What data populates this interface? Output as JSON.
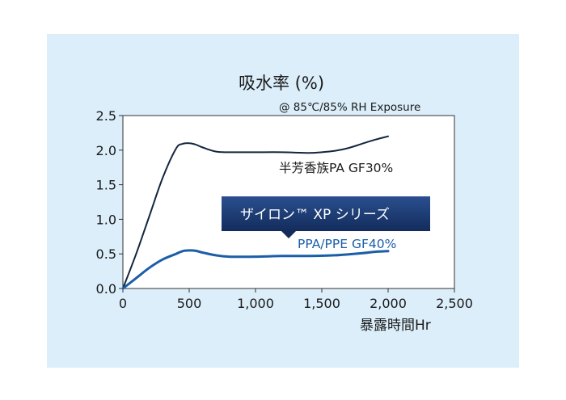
{
  "chart_data": {
    "type": "line",
    "title": "吸水率 (%)",
    "subtitle": "@ 85℃/85% RH Exposure",
    "xlabel": "暴露時間Hr",
    "ylabel": "",
    "xlim": [
      0,
      2500
    ],
    "ylim": [
      0,
      2.5
    ],
    "x_ticks": [
      0,
      500,
      1000,
      1500,
      2000,
      2500
    ],
    "x_tick_labels": [
      "0",
      "500",
      "1,000",
      "1,500",
      "2,000",
      "2,500"
    ],
    "y_ticks": [
      0,
      0.5,
      1.0,
      1.5,
      2.0,
      2.5
    ],
    "y_tick_labels": [
      "0.0",
      "0.5",
      "1.0",
      "1.5",
      "2.0",
      "2.5"
    ],
    "grid": false,
    "series": [
      {
        "name": "半芳香族PA GF30%",
        "color": "#15253f",
        "x": [
          0,
          100,
          200,
          300,
          400,
          450,
          500,
          550,
          600,
          700,
          800,
          1000,
          1200,
          1400,
          1500,
          1600,
          1700,
          1800,
          1900,
          2000
        ],
        "y": [
          0,
          0.5,
          1.05,
          1.6,
          2.02,
          2.09,
          2.1,
          2.08,
          2.04,
          1.98,
          1.97,
          1.97,
          1.97,
          1.96,
          1.97,
          1.99,
          2.03,
          2.09,
          2.15,
          2.2
        ]
      },
      {
        "name": "PPA/PPE GF40%",
        "color": "#1b5ea8",
        "x": [
          0,
          100,
          200,
          300,
          400,
          450,
          500,
          550,
          600,
          700,
          800,
          1000,
          1200,
          1400,
          1600,
          1800,
          1900,
          2000
        ],
        "y": [
          0,
          0.15,
          0.3,
          0.42,
          0.5,
          0.54,
          0.55,
          0.545,
          0.52,
          0.48,
          0.46,
          0.46,
          0.47,
          0.47,
          0.48,
          0.51,
          0.53,
          0.54
        ]
      }
    ],
    "callout": {
      "text": "ザイロン™ XP シリーズ",
      "background": "#1f3f7a",
      "text_color": "#ffffff"
    }
  }
}
